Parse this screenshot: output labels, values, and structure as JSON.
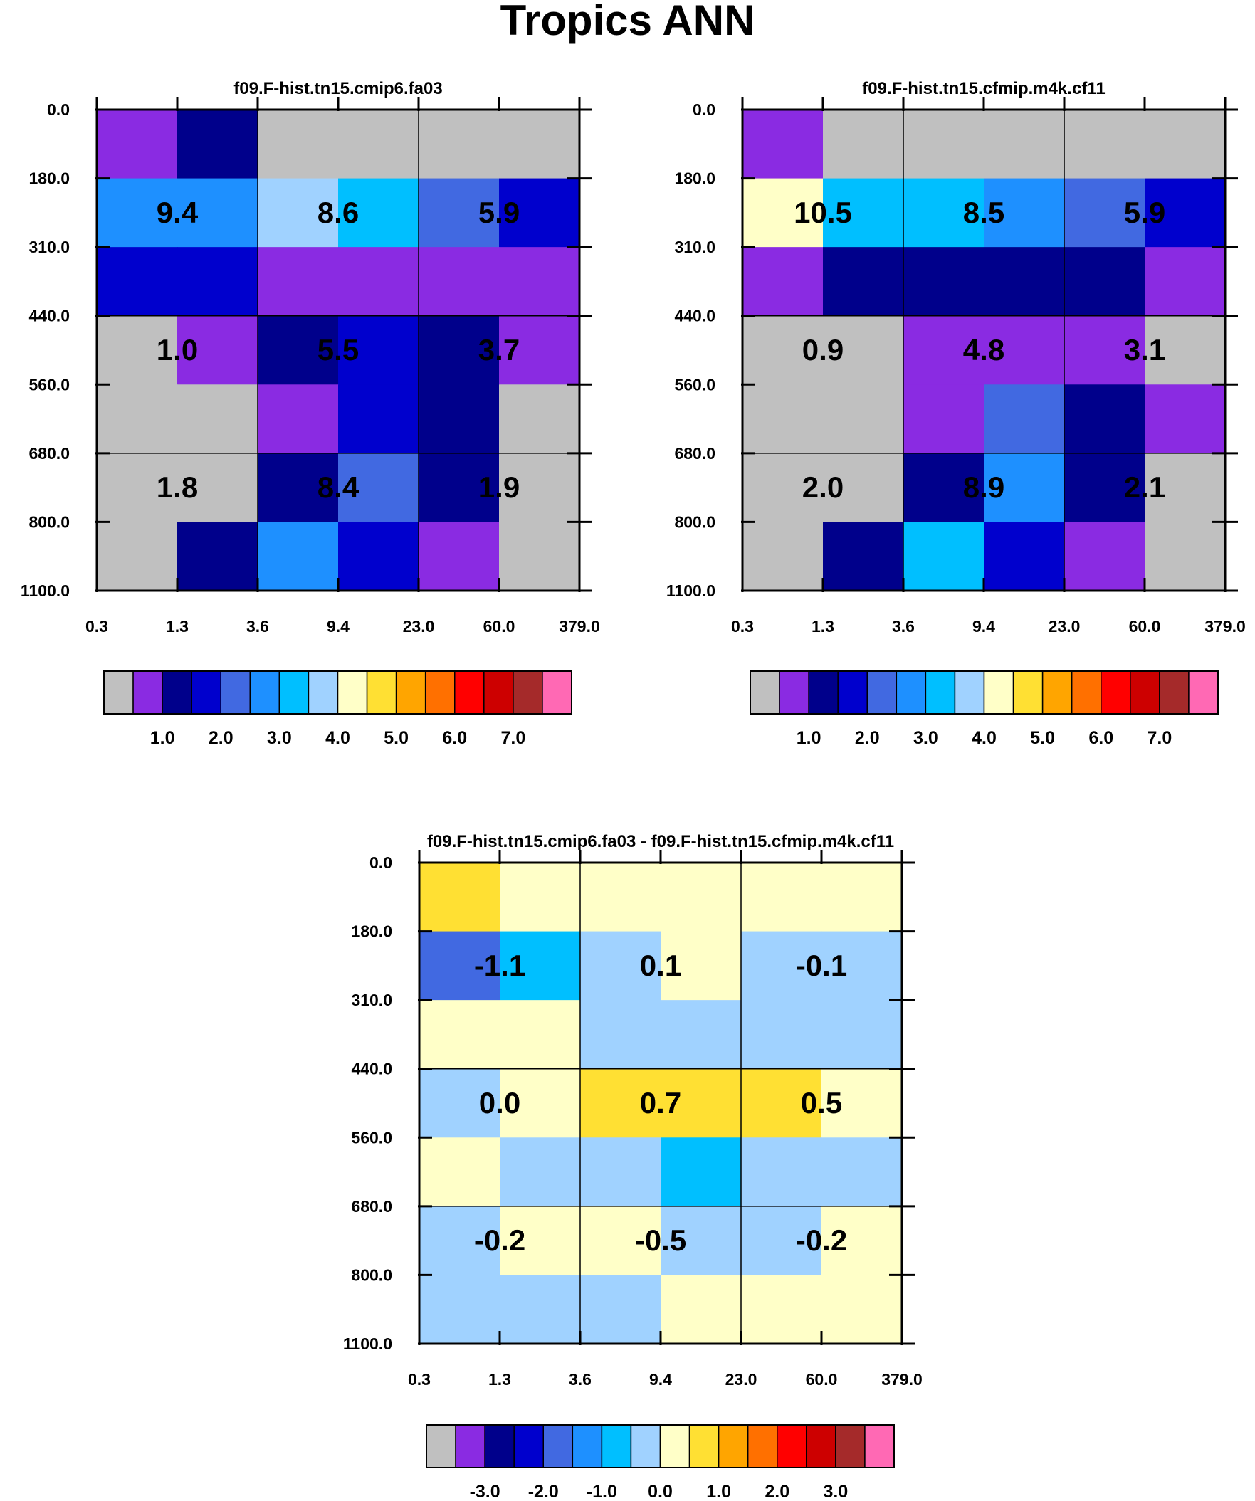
{
  "title": "Tropics ANN",
  "chart_data": [
    {
      "type": "heatmap",
      "title": "f09.F-hist.tn15.cmip6.fa03",
      "x_ticks": [
        "0.3",
        "1.3",
        "3.6",
        "9.4",
        "23.0",
        "60.0",
        "379.0"
      ],
      "y_ticks": [
        "0.0",
        "180.0",
        "310.0",
        "440.0",
        "560.0",
        "680.0",
        "800.0",
        "1100.0"
      ],
      "bin_categories": [
        0,
        1,
        2,
        3,
        4,
        5,
        6,
        7,
        8,
        9,
        10,
        11,
        12,
        13,
        14,
        15
      ],
      "grid": [
        [
          1,
          2,
          0,
          0,
          0,
          0
        ],
        [
          5,
          5,
          7,
          6,
          4,
          3
        ],
        [
          3,
          3,
          1,
          1,
          1,
          1
        ],
        [
          0,
          1,
          2,
          3,
          2,
          1
        ],
        [
          0,
          0,
          1,
          3,
          2,
          0
        ],
        [
          0,
          0,
          2,
          4,
          2,
          0
        ],
        [
          0,
          2,
          5,
          3,
          1,
          0
        ]
      ],
      "regions": [
        {
          "col": 0,
          "row": 0,
          "label": "9.4"
        },
        {
          "col": 1,
          "row": 0,
          "label": "8.6"
        },
        {
          "col": 2,
          "row": 0,
          "label": "5.9"
        },
        {
          "col": 0,
          "row": 1,
          "label": "1.0"
        },
        {
          "col": 1,
          "row": 1,
          "label": "5.5"
        },
        {
          "col": 2,
          "row": 1,
          "label": "3.7"
        },
        {
          "col": 0,
          "row": 2,
          "label": "1.8"
        },
        {
          "col": 1,
          "row": 2,
          "label": "8.4"
        },
        {
          "col": 2,
          "row": 2,
          "label": "1.9"
        }
      ],
      "colorbar_labels": [
        "1.0",
        "2.0",
        "3.0",
        "4.0",
        "5.0",
        "6.0",
        "7.0"
      ],
      "colorbar_label_positions": [
        2,
        4,
        6,
        8,
        10,
        12,
        14
      ]
    },
    {
      "type": "heatmap",
      "title": "f09.F-hist.tn15.cfmip.m4k.cf11",
      "x_ticks": [
        "0.3",
        "1.3",
        "3.6",
        "9.4",
        "23.0",
        "60.0",
        "379.0"
      ],
      "y_ticks": [
        "0.0",
        "180.0",
        "310.0",
        "440.0",
        "560.0",
        "680.0",
        "800.0",
        "1100.0"
      ],
      "bin_categories": [
        0,
        1,
        2,
        3,
        4,
        5,
        6,
        7,
        8,
        9,
        10,
        11,
        12,
        13,
        14,
        15
      ],
      "grid": [
        [
          1,
          0,
          0,
          0,
          0,
          0
        ],
        [
          8,
          6,
          6,
          5,
          4,
          3
        ],
        [
          1,
          2,
          2,
          2,
          2,
          1
        ],
        [
          0,
          0,
          1,
          1,
          1,
          0
        ],
        [
          0,
          0,
          1,
          4,
          2,
          1
        ],
        [
          0,
          0,
          2,
          5,
          2,
          0
        ],
        [
          0,
          2,
          6,
          3,
          1,
          0
        ]
      ],
      "regions": [
        {
          "col": 0,
          "row": 0,
          "label": "10.5"
        },
        {
          "col": 1,
          "row": 0,
          "label": "8.5"
        },
        {
          "col": 2,
          "row": 0,
          "label": "5.9"
        },
        {
          "col": 0,
          "row": 1,
          "label": "0.9"
        },
        {
          "col": 1,
          "row": 1,
          "label": "4.8"
        },
        {
          "col": 2,
          "row": 1,
          "label": "3.1"
        },
        {
          "col": 0,
          "row": 2,
          "label": "2.0"
        },
        {
          "col": 1,
          "row": 2,
          "label": "8.9"
        },
        {
          "col": 2,
          "row": 2,
          "label": "2.1"
        }
      ],
      "colorbar_labels": [
        "1.0",
        "2.0",
        "3.0",
        "4.0",
        "5.0",
        "6.0",
        "7.0"
      ],
      "colorbar_label_positions": [
        2,
        4,
        6,
        8,
        10,
        12,
        14
      ]
    },
    {
      "type": "heatmap",
      "title": "f09.F-hist.tn15.cmip6.fa03 - f09.F-hist.tn15.cfmip.m4k.cf11",
      "x_ticks": [
        "0.3",
        "1.3",
        "3.6",
        "9.4",
        "23.0",
        "60.0",
        "379.0"
      ],
      "y_ticks": [
        "0.0",
        "180.0",
        "310.0",
        "440.0",
        "560.0",
        "680.0",
        "800.0",
        "1100.0"
      ],
      "bin_categories": [
        0,
        1,
        2,
        3,
        4,
        5,
        6,
        7,
        8,
        9,
        10,
        11,
        12,
        13,
        14,
        15
      ],
      "grid": [
        [
          9,
          8,
          8,
          8,
          8,
          8
        ],
        [
          4,
          6,
          7,
          8,
          7,
          7
        ],
        [
          8,
          8,
          7,
          7,
          7,
          7
        ],
        [
          7,
          8,
          9,
          9,
          9,
          8
        ],
        [
          8,
          7,
          7,
          6,
          7,
          7
        ],
        [
          7,
          8,
          8,
          7,
          7,
          8
        ],
        [
          7,
          7,
          7,
          8,
          8,
          8
        ]
      ],
      "regions": [
        {
          "col": 0,
          "row": 0,
          "label": "-1.1"
        },
        {
          "col": 1,
          "row": 0,
          "label": "0.1"
        },
        {
          "col": 2,
          "row": 0,
          "label": "-0.1"
        },
        {
          "col": 0,
          "row": 1,
          "label": "0.0"
        },
        {
          "col": 1,
          "row": 1,
          "label": "0.7"
        },
        {
          "col": 2,
          "row": 1,
          "label": "0.5"
        },
        {
          "col": 0,
          "row": 2,
          "label": "-0.2"
        },
        {
          "col": 1,
          "row": 2,
          "label": "-0.5"
        },
        {
          "col": 2,
          "row": 2,
          "label": "-0.2"
        }
      ],
      "colorbar_labels": [
        "-3.0",
        "-2.0",
        "-1.0",
        "0.0",
        "1.0",
        "2.0",
        "3.0"
      ],
      "colorbar_label_positions": [
        2,
        4,
        6,
        8,
        10,
        12,
        14
      ]
    }
  ],
  "palette": [
    "#c0c0c0",
    "#8a2be2",
    "#00008b",
    "#0000cd",
    "#4169e1",
    "#1e90ff",
    "#00bfff",
    "#a0d2ff",
    "#ffffc8",
    "#ffe033",
    "#ffa500",
    "#ff7000",
    "#ff0000",
    "#cd0000",
    "#a52a2a",
    "#ff69b4"
  ]
}
